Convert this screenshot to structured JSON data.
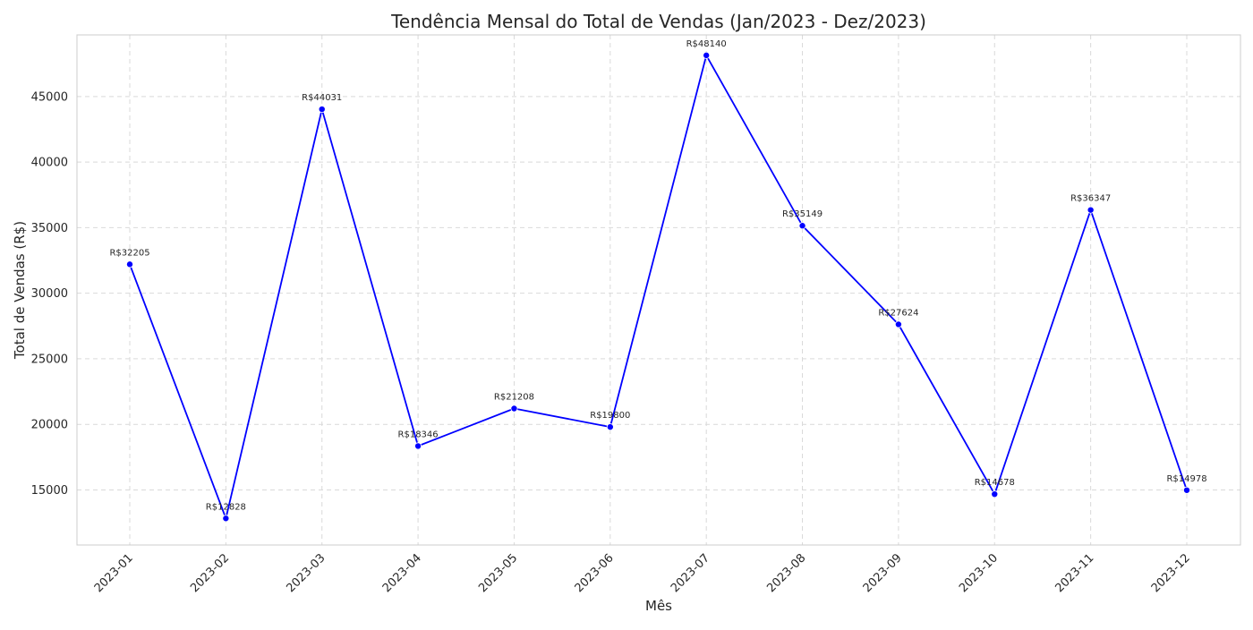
{
  "chart_data": {
    "type": "line",
    "title": "Tendência Mensal do Total de Vendas (Jan/2023 - Dez/2023)",
    "xlabel": "Mês",
    "ylabel": "Total de Vendas (R$)",
    "categories": [
      "2023-01",
      "2023-02",
      "2023-03",
      "2023-04",
      "2023-05",
      "2023-06",
      "2023-07",
      "2023-08",
      "2023-09",
      "2023-10",
      "2023-11",
      "2023-12"
    ],
    "values": [
      32205,
      12828,
      44031,
      18346,
      21208,
      19800,
      48140,
      35149,
      27624,
      14678,
      36347,
      14978
    ],
    "data_labels": [
      "R$32205",
      "R$12828",
      "R$44031",
      "R$18346",
      "R$21208",
      "R$19800",
      "R$48140",
      "R$35149",
      "R$27624",
      "R$14678",
      "R$36347",
      "R$14978"
    ],
    "yticks": [
      15000,
      20000,
      25000,
      30000,
      35000,
      40000,
      45000
    ],
    "ylim": [
      10800,
      49700
    ],
    "grid": true,
    "line_color": "#0000ff",
    "marker_color": "#0000ff"
  }
}
